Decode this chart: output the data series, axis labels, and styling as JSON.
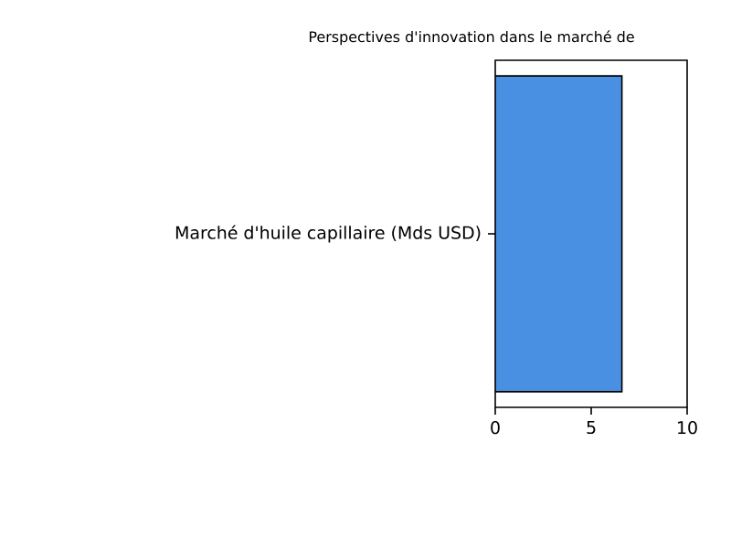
{
  "chart_data": {
    "type": "bar",
    "orientation": "horizontal",
    "title": "Perspectives d'innovation dans le marché de",
    "categories": [
      "Marché d'huile capillaire (Mds USD)"
    ],
    "values": [
      6.6
    ],
    "color": "#4a90e2",
    "xlim": [
      0,
      10
    ],
    "xticks": [
      0,
      5,
      10
    ]
  }
}
